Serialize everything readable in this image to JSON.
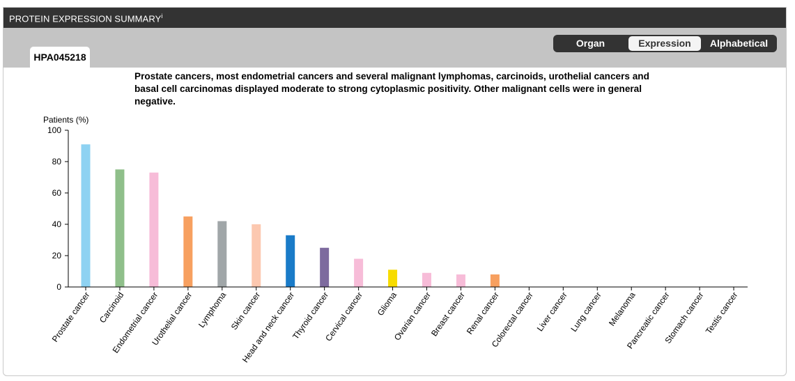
{
  "panel": {
    "title": "PROTEIN EXPRESSION SUMMARY",
    "title_sup": "i",
    "antibody_tab": "HPA045218",
    "view_toggle": [
      "Organ",
      "Expression",
      "Alphabetical"
    ],
    "active_view": "Expression",
    "summary": "Prostate cancers, most endometrial cancers and several malignant lymphomas, carcinoids, urothelial cancers and basal cell carcinomas displayed moderate to strong cytoplasmic positivity. Other malignant cells were in general negative."
  },
  "chart_data": {
    "type": "bar",
    "ylabel": "Patients (%)",
    "ylim": [
      0,
      100
    ],
    "yticks": [
      0,
      20,
      40,
      60,
      80,
      100
    ],
    "grid": false,
    "categories": [
      "Prostate cancer",
      "Carcinoid",
      "Endometrial cancer",
      "Urothelial cancer",
      "Lymphoma",
      "Skin cancer",
      "Head and neck cancer",
      "Thyroid cancer",
      "Cervical cancer",
      "Glioma",
      "Ovarian cancer",
      "Breast cancer",
      "Renal cancer",
      "Colorectal cancer",
      "Liver cancer",
      "Lung cancer",
      "Melanoma",
      "Pancreatic cancer",
      "Stomach cancer",
      "Testis cancer"
    ],
    "values": [
      91,
      75,
      73,
      45,
      42,
      40,
      33,
      25,
      18,
      11,
      9,
      8,
      8,
      0,
      0,
      0,
      0,
      0,
      0,
      0
    ],
    "colors": [
      "#8ed2f2",
      "#8fbf8a",
      "#f7bcd8",
      "#f7a060",
      "#a0a6a8",
      "#fcc8b0",
      "#1a7bc8",
      "#7d6a9e",
      "#f7bcd8",
      "#f7dc00",
      "#f7bcd8",
      "#f7bcd8",
      "#f7a060",
      "#cccccc",
      "#cccccc",
      "#cccccc",
      "#cccccc",
      "#cccccc",
      "#cccccc",
      "#cccccc"
    ]
  }
}
